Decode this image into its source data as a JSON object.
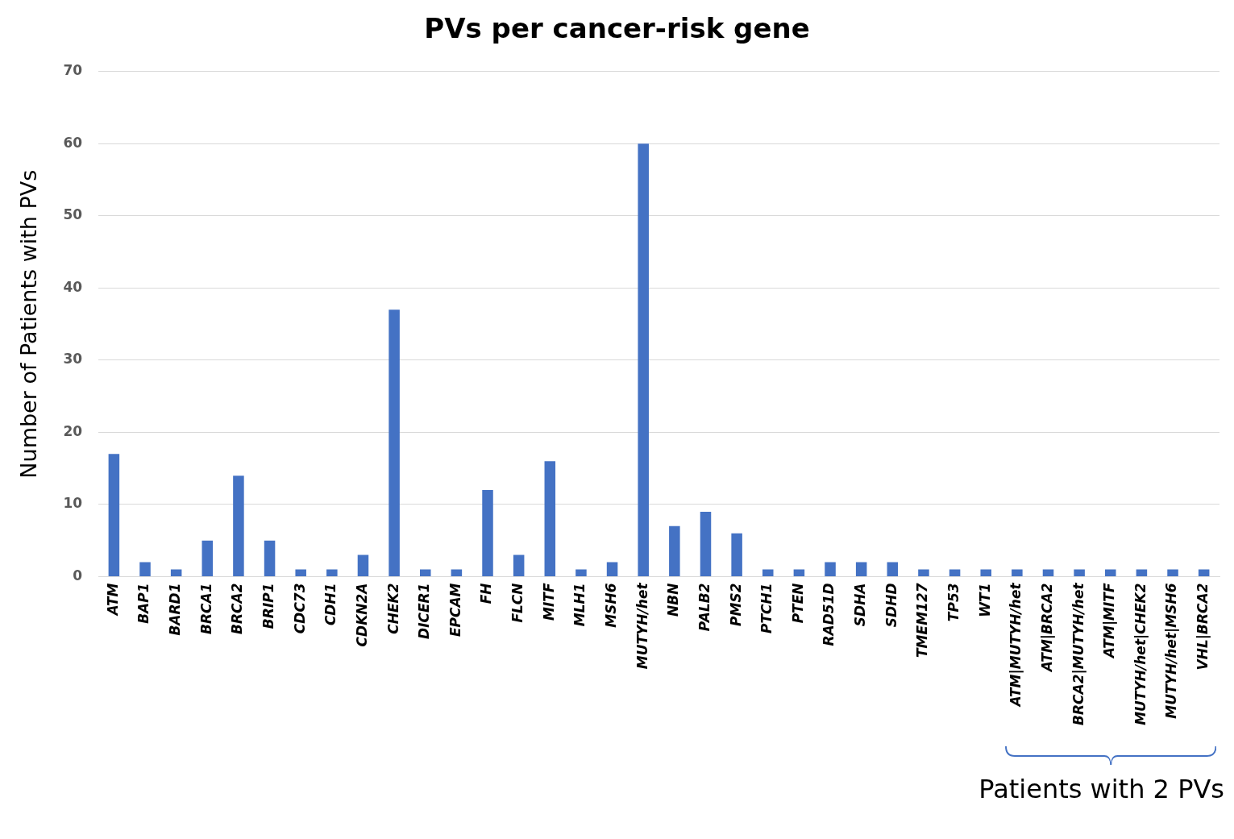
{
  "chart_data": {
    "type": "bar",
    "title": "PVs per cancer-risk gene",
    "ylabel": "Number of Patients with PVs",
    "categories": [
      "ATM",
      "BAP1",
      "BARD1",
      "BRCA1",
      "BRCA2",
      "BRIP1",
      "CDC73",
      "CDH1",
      "CDKN2A",
      "CHEK2",
      "DICER1",
      "EPCAM",
      "FH",
      "FLCN",
      "MITF",
      "MLH1",
      "MSH6",
      "MUTYH/het",
      "NBN",
      "PALB2",
      "PMS2",
      "PTCH1",
      "PTEN",
      "RAD51D",
      "SDHA",
      "SDHD",
      "TMEM127",
      "TP53",
      "WT1",
      "ATM|MUTYH/het",
      "ATM|BRCA2",
      "BRCA2|MUTYH/het",
      "ATM|MITF",
      "MUTYH/het|CHEK2",
      "MUTYH/het|MSH6",
      "VHL|BRCA2"
    ],
    "values": [
      17,
      2,
      1,
      5,
      14,
      5,
      1,
      1,
      3,
      37,
      1,
      1,
      12,
      3,
      16,
      1,
      2,
      60,
      7,
      9,
      6,
      1,
      1,
      2,
      2,
      2,
      1,
      1,
      1,
      1,
      1,
      1,
      1,
      1,
      1,
      1
    ],
    "color": "#4472c4",
    "ylim": [
      0,
      70
    ],
    "yticks": [
      0,
      10,
      20,
      30,
      40,
      50,
      60,
      70
    ],
    "grid": "y",
    "annotations": [
      "Patients with 2 PVs"
    ]
  }
}
